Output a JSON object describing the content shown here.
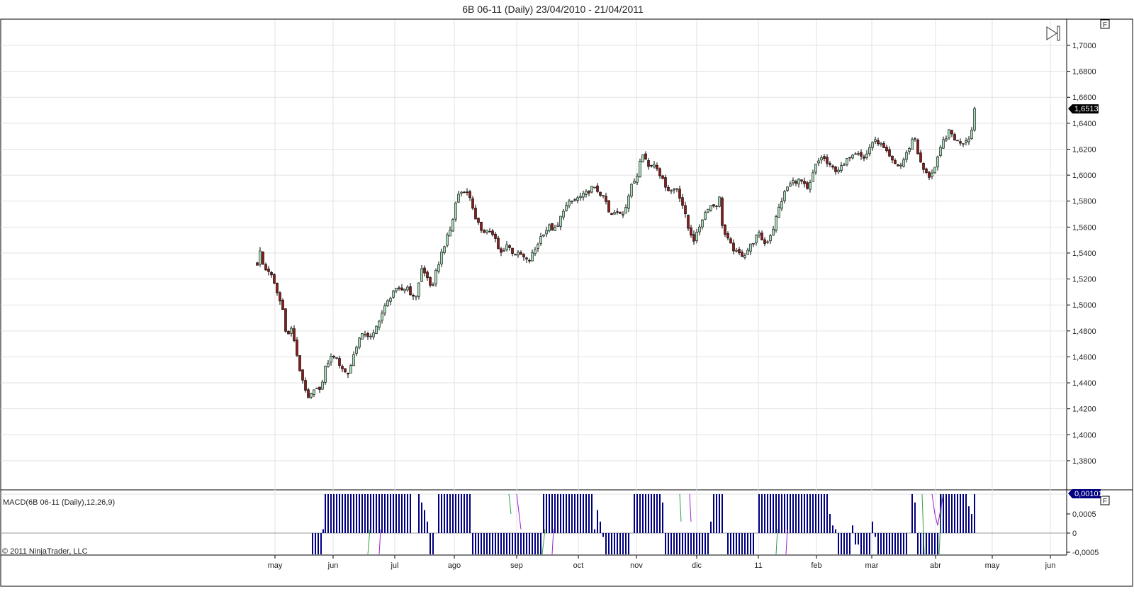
{
  "title": "6B 06-11 (Daily)  23/04/2010 - 21/04/2011",
  "copyright": "© 2011 NinjaTrader, LLC",
  "f_button": "F",
  "colors": {
    "up": "#a8dbb8",
    "down": "#8b1a1a",
    "macd": "#000080",
    "avg": "#2e9e3e",
    "diff": "#a020d0",
    "grid": "#e2e2e2"
  },
  "chart_data": [
    {
      "type": "candlestick",
      "title": "6B 06-11 (Daily)",
      "first_bar_date": "23/04/2010",
      "last_bar_date": "21/04/2011",
      "last_price_label": "1,6513",
      "ylim": [
        1.365,
        1.718
      ],
      "y_ticks": [
        {
          "v": 1.7,
          "label": "1,7000"
        },
        {
          "v": 1.68,
          "label": "1,6800"
        },
        {
          "v": 1.66,
          "label": "1,6600"
        },
        {
          "v": 1.64,
          "label": "1,6400"
        },
        {
          "v": 1.62,
          "label": "1,6200"
        },
        {
          "v": 1.6,
          "label": "1,6000"
        },
        {
          "v": 1.58,
          "label": "1,5800"
        },
        {
          "v": 1.56,
          "label": "1,5600"
        },
        {
          "v": 1.54,
          "label": "1,5400"
        },
        {
          "v": 1.52,
          "label": "1,5200"
        },
        {
          "v": 1.5,
          "label": "1,5000"
        },
        {
          "v": 1.48,
          "label": "1,4800"
        },
        {
          "v": 1.46,
          "label": "1,4600"
        },
        {
          "v": 1.44,
          "label": "1,4400"
        },
        {
          "v": 1.42,
          "label": "1,4200"
        },
        {
          "v": 1.4,
          "label": "1,4000"
        },
        {
          "v": 1.38,
          "label": "1,3800"
        }
      ],
      "x_ticks": [
        {
          "bar": 6.25,
          "label": "may"
        },
        {
          "bar": 26.75,
          "label": "jun"
        },
        {
          "bar": 48.5,
          "label": "jul"
        },
        {
          "bar": 69.5,
          "label": "ago"
        },
        {
          "bar": 91.5,
          "label": "sep"
        },
        {
          "bar": 113.25,
          "label": "oct"
        },
        {
          "bar": 133.75,
          "label": "nov"
        },
        {
          "bar": 155,
          "label": "dic"
        },
        {
          "bar": 176.75,
          "label": "11"
        },
        {
          "bar": 197.25,
          "label": "feb"
        },
        {
          "bar": 216.75,
          "label": "mar"
        },
        {
          "bar": 239.25,
          "label": "abr"
        },
        {
          "bar": 259.25,
          "label": "may"
        },
        {
          "bar": 279.75,
          "label": "jun"
        }
      ],
      "close_anchors": [
        [
          0,
          1.5318
        ],
        [
          1.25,
          1.5428
        ],
        [
          2.25,
          1.5275
        ],
        [
          4.25,
          1.5264
        ],
        [
          6.75,
          1.5111
        ],
        [
          9.25,
          1.4947
        ],
        [
          10.5,
          1.4729
        ],
        [
          11.75,
          1.4838
        ],
        [
          13,
          1.4729
        ],
        [
          14.25,
          1.4565
        ],
        [
          15.5,
          1.4456
        ],
        [
          16.75,
          1.4374
        ],
        [
          18,
          1.4265
        ],
        [
          19.25,
          1.432
        ],
        [
          21.75,
          1.4358
        ],
        [
          23,
          1.4401
        ],
        [
          24.25,
          1.4538
        ],
        [
          26.75,
          1.462
        ],
        [
          29.25,
          1.4538
        ],
        [
          31.75,
          1.4456
        ],
        [
          33,
          1.4538
        ],
        [
          35.5,
          1.4729
        ],
        [
          38,
          1.4783
        ],
        [
          40.5,
          1.474
        ],
        [
          43,
          1.4892
        ],
        [
          45.5,
          1.5002
        ],
        [
          48,
          1.5111
        ],
        [
          50.5,
          1.5111
        ],
        [
          53,
          1.5138
        ],
        [
          55.5,
          1.5029
        ],
        [
          58,
          1.5275
        ],
        [
          60.5,
          1.5193
        ],
        [
          61.75,
          1.5111
        ],
        [
          63,
          1.5248
        ],
        [
          65.5,
          1.5439
        ],
        [
          68,
          1.5575
        ],
        [
          69.25,
          1.5684
        ],
        [
          70.5,
          1.5848
        ],
        [
          73,
          1.5886
        ],
        [
          75.5,
          1.5821
        ],
        [
          76.75,
          1.5657
        ],
        [
          79.25,
          1.5575
        ],
        [
          81.75,
          1.5575
        ],
        [
          84.25,
          1.5493
        ],
        [
          85.5,
          1.5384
        ],
        [
          88,
          1.5466
        ],
        [
          90.5,
          1.5395
        ],
        [
          93,
          1.5384
        ],
        [
          95.5,
          1.5329
        ],
        [
          98,
          1.5428
        ],
        [
          100.5,
          1.5548
        ],
        [
          103,
          1.5603
        ],
        [
          105.5,
          1.5575
        ],
        [
          108,
          1.5739
        ],
        [
          110.5,
          1.5793
        ],
        [
          113,
          1.5821
        ],
        [
          115.5,
          1.5848
        ],
        [
          118,
          1.5903
        ],
        [
          120.5,
          1.5875
        ],
        [
          123,
          1.5793
        ],
        [
          124.25,
          1.5684
        ],
        [
          126.75,
          1.5711
        ],
        [
          129.25,
          1.5711
        ],
        [
          131.75,
          1.5903
        ],
        [
          134.25,
          1.6012
        ],
        [
          135.5,
          1.6203
        ],
        [
          138,
          1.6066
        ],
        [
          140.5,
          1.6094
        ],
        [
          143,
          1.5957
        ],
        [
          145.5,
          1.5875
        ],
        [
          148,
          1.5903
        ],
        [
          150.5,
          1.5739
        ],
        [
          151.75,
          1.5603
        ],
        [
          154.25,
          1.5493
        ],
        [
          156.75,
          1.5657
        ],
        [
          159.25,
          1.5766
        ],
        [
          161.75,
          1.5766
        ],
        [
          163,
          1.5821
        ],
        [
          164.25,
          1.5575
        ],
        [
          166.75,
          1.5466
        ],
        [
          169.25,
          1.5395
        ],
        [
          171.75,
          1.5384
        ],
        [
          174.25,
          1.5466
        ],
        [
          176.75,
          1.5548
        ],
        [
          179.25,
          1.5466
        ],
        [
          181.75,
          1.5575
        ],
        [
          184.25,
          1.5766
        ],
        [
          186.75,
          1.5903
        ],
        [
          189.25,
          1.5957
        ],
        [
          191.75,
          1.5957
        ],
        [
          194.25,
          1.5875
        ],
        [
          196.75,
          1.6066
        ],
        [
          199.25,
          1.6148
        ],
        [
          201.75,
          1.6066
        ],
        [
          204.25,
          1.6039
        ],
        [
          206.75,
          1.6066
        ],
        [
          209.25,
          1.6159
        ],
        [
          211.75,
          1.6192
        ],
        [
          214.25,
          1.6121
        ],
        [
          216.75,
          1.6257
        ],
        [
          219.25,
          1.6257
        ],
        [
          221.75,
          1.6176
        ],
        [
          224.25,
          1.6094
        ],
        [
          226.75,
          1.6066
        ],
        [
          229.25,
          1.6176
        ],
        [
          231.75,
          1.6312
        ],
        [
          233,
          1.6176
        ],
        [
          234.25,
          1.6066
        ],
        [
          236.75,
          1.5984
        ],
        [
          239.25,
          1.6066
        ],
        [
          241.75,
          1.6257
        ],
        [
          244.25,
          1.6339
        ],
        [
          246.75,
          1.6257
        ],
        [
          249.25,
          1.6257
        ],
        [
          251.75,
          1.6312
        ],
        [
          253.25,
          1.6513
        ]
      ]
    },
    {
      "type": "bar",
      "title": "MACD(6B 06-11 (Daily),12,26,9)",
      "last_value_label": "0,00101",
      "ylim": [
        -0.00055,
        0.00105
      ],
      "y_ticks": [
        {
          "v": 0.0005,
          "label": "0,0005"
        },
        {
          "v": 0,
          "label": "0"
        },
        {
          "v": -0.0005,
          "label": "-0,0005"
        }
      ],
      "histogram_runs": [
        [
          19.5,
          22.5,
          -0.0006
        ],
        [
          23.25,
          23.25,
          0.0001
        ],
        [
          24,
          54,
          0.0012
        ],
        [
          57,
          57,
          0.0011
        ],
        [
          58,
          58,
          0.0008
        ],
        [
          59,
          59,
          0.0006
        ],
        [
          60,
          60,
          0.0003
        ],
        [
          61,
          62,
          -0.0006
        ],
        [
          64,
          75,
          0.0012
        ],
        [
          76,
          100,
          -0.0006
        ],
        [
          101,
          118,
          0.0012
        ],
        [
          119,
          119,
          0.0001
        ],
        [
          120,
          120,
          0.0006
        ],
        [
          121,
          121,
          0.0003
        ],
        [
          122,
          122,
          -0.0001
        ],
        [
          123,
          131,
          -0.0006
        ],
        [
          133,
          142,
          0.0012
        ],
        [
          143,
          143,
          0.0008
        ],
        [
          144,
          159,
          -0.0006
        ],
        [
          160,
          160,
          0.0003
        ],
        [
          161,
          164,
          0.0012
        ],
        [
          166,
          175,
          -0.0006
        ],
        [
          177,
          201,
          0.0012
        ],
        [
          202,
          202,
          0.0005
        ],
        [
          203,
          203,
          0.0002
        ],
        [
          204,
          204,
          0.0001
        ],
        [
          205,
          209,
          -0.0006
        ],
        [
          210,
          210,
          0.0002
        ],
        [
          211,
          212,
          -0.0003
        ],
        [
          213,
          216,
          -0.0006
        ],
        [
          217,
          217,
          0.0003
        ],
        [
          218,
          218,
          -0.0001
        ],
        [
          219,
          229,
          -0.0006
        ],
        [
          231,
          231,
          0.0011
        ],
        [
          232,
          232,
          0.0008
        ],
        [
          233,
          240,
          -0.0006
        ],
        [
          241,
          250,
          0.0012
        ],
        [
          251,
          251,
          0.0007
        ],
        [
          252,
          252,
          0.0005
        ],
        [
          253,
          253,
          0.0011
        ]
      ],
      "avg_line_segments": [
        [
          [
            39,
            -0.0006
          ],
          [
            39.75,
            0.0001
          ]
        ],
        [
          [
            88.75,
            0.0012
          ],
          [
            89.5,
            0.0005
          ]
        ],
        [
          [
            100.5,
            -0.0006
          ],
          [
            101.5,
            0.0001
          ]
        ],
        [
          [
            149,
            0.0012
          ],
          [
            149.5,
            0.0003
          ]
        ],
        [
          [
            183,
            -0.0006
          ],
          [
            183.5,
            0.0001
          ]
        ],
        [
          [
            234.5,
            0.0012
          ],
          [
            235.25,
            -0.0006
          ]
        ],
        [
          [
            240.5,
            -0.0006
          ],
          [
            241.5,
            0.0012
          ]
        ]
      ],
      "diff_line_segments": [
        [
          [
            43,
            -0.0006
          ],
          [
            43.5,
            0.0001
          ]
        ],
        [
          [
            91.5,
            0.0012
          ],
          [
            93,
            0.0001
          ]
        ],
        [
          [
            104,
            -0.0006
          ],
          [
            104.5,
            0.0001
          ]
        ],
        [
          [
            152.5,
            0.0012
          ],
          [
            153,
            0.0003
          ]
        ],
        [
          [
            186.5,
            -0.0006
          ],
          [
            187,
            0.0001
          ]
        ],
        [
          [
            238,
            0.0012
          ],
          [
            239,
            0.0005
          ],
          [
            240,
            0.0002
          ],
          [
            241,
            0.0006
          ],
          [
            242,
            0.0012
          ]
        ]
      ]
    }
  ]
}
